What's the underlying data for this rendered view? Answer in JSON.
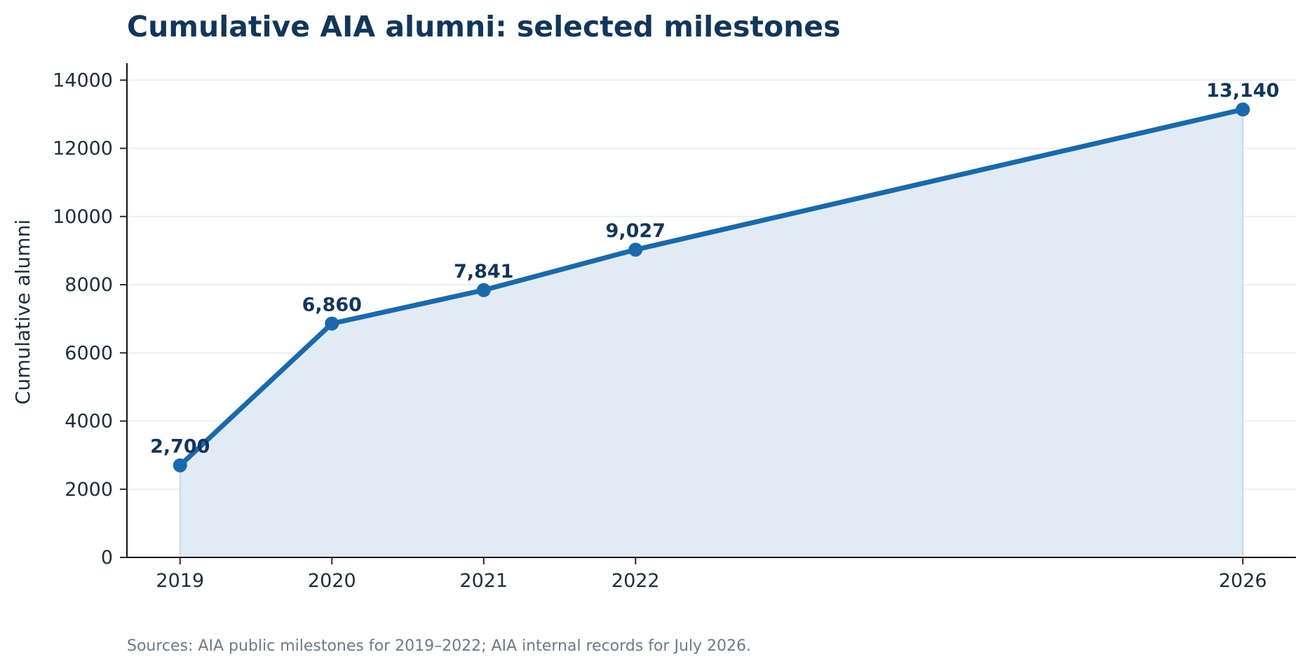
{
  "chart_data": {
    "type": "area",
    "title": "Cumulative AIA alumni: selected milestones",
    "ylabel": "Cumulative alumni",
    "xlabel": "",
    "x": [
      2019,
      2020,
      2021,
      2022,
      2026
    ],
    "values": [
      2700,
      6860,
      7841,
      9027,
      13140
    ],
    "data_labels": [
      "2,700",
      "6,860",
      "7,841",
      "9,027",
      "13,140"
    ],
    "x_ticks": [
      "2019",
      "2020",
      "2021",
      "2022",
      "2026"
    ],
    "y_ticks": [
      "0",
      "2000",
      "4000",
      "6000",
      "8000",
      "10000",
      "12000",
      "14000"
    ],
    "ylim": [
      0,
      14500
    ],
    "xlim": [
      2018.65,
      2026.35
    ],
    "grid": "horizontal",
    "legend": "none",
    "source": "Sources: AIA public milestones for 2019–2022; AIA internal records for July 2026.",
    "colors": {
      "line": "#1b69aa",
      "fill": "#e0ebf5",
      "title": "#12365a",
      "label": "#12365a",
      "tick": "#1f2d3d",
      "grid": "#eceff2",
      "source": "#6c7a88"
    }
  }
}
